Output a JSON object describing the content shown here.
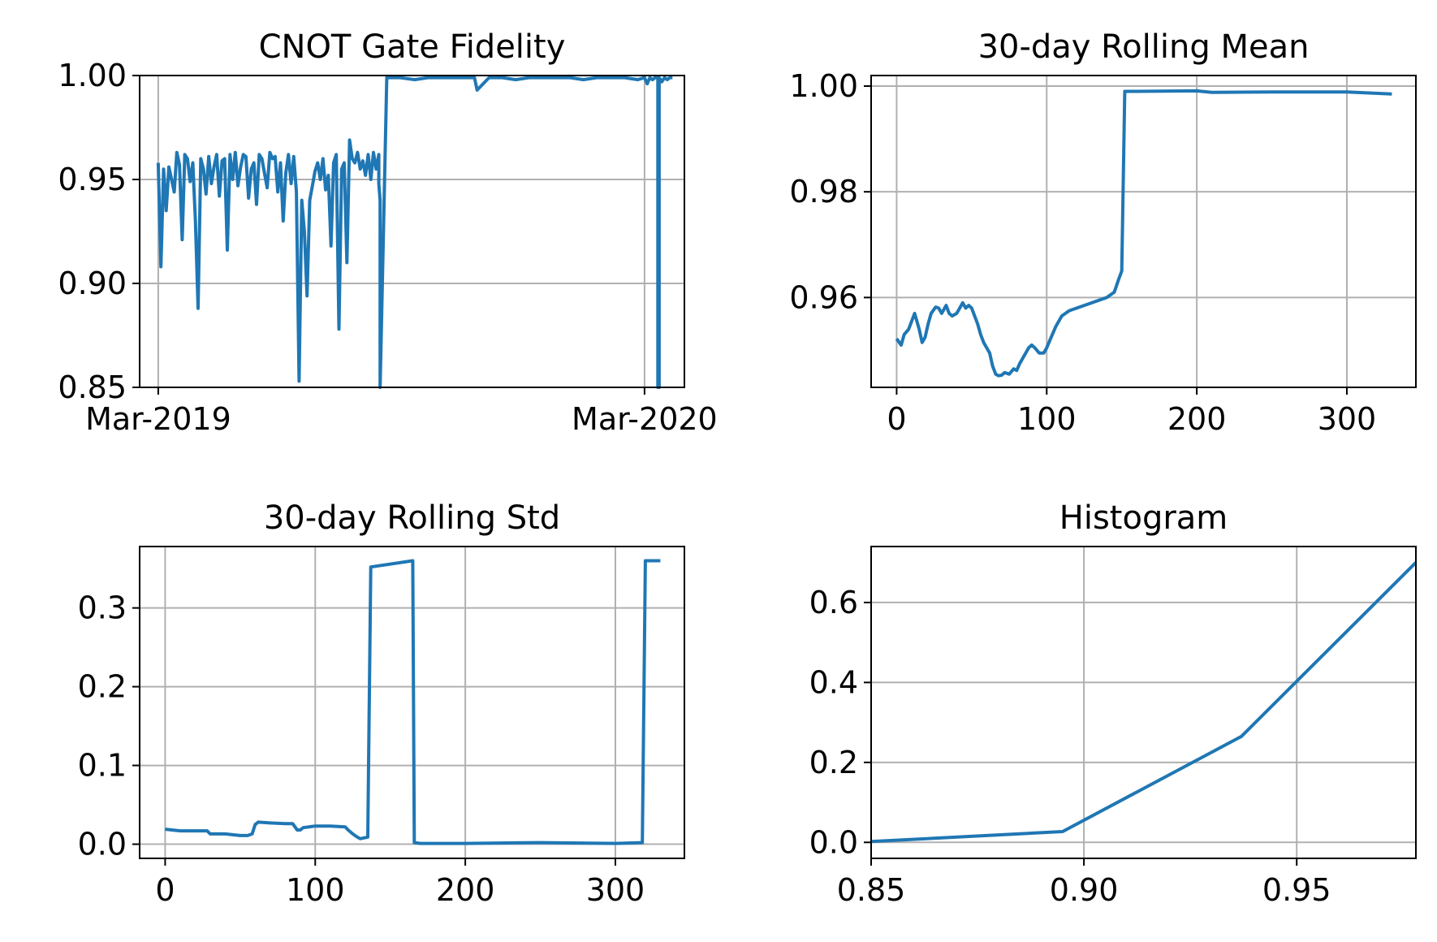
{
  "figure": {
    "colors": {
      "series": "#1f77b4",
      "grid": "#b0b0b0",
      "frame": "#000000"
    }
  },
  "chart_data": [
    {
      "id": "fidelity",
      "type": "line",
      "title": "CNOT Gate Fidelity",
      "xlabel": "",
      "ylabel": "",
      "x_axis": "date",
      "x": [
        "2019-03-01",
        "2019-03-03",
        "2019-03-05",
        "2019-03-07",
        "2019-03-09",
        "2019-03-11",
        "2019-03-13",
        "2019-03-15",
        "2019-03-17",
        "2019-03-19",
        "2019-03-21",
        "2019-03-23",
        "2019-03-25",
        "2019-03-27",
        "2019-03-29",
        "2019-03-31",
        "2019-04-02",
        "2019-04-04",
        "2019-04-06",
        "2019-04-08",
        "2019-04-10",
        "2019-04-12",
        "2019-04-14",
        "2019-04-16",
        "2019-04-18",
        "2019-04-20",
        "2019-04-22",
        "2019-04-24",
        "2019-04-26",
        "2019-04-28",
        "2019-04-30",
        "2019-05-02",
        "2019-05-04",
        "2019-05-06",
        "2019-05-08",
        "2019-05-10",
        "2019-05-12",
        "2019-05-14",
        "2019-05-16",
        "2019-05-18",
        "2019-05-20",
        "2019-05-22",
        "2019-05-24",
        "2019-05-26",
        "2019-05-28",
        "2019-05-30",
        "2019-06-01",
        "2019-06-03",
        "2019-06-05",
        "2019-06-07",
        "2019-06-09",
        "2019-06-11",
        "2019-06-13",
        "2019-06-15",
        "2019-06-17",
        "2019-06-19",
        "2019-06-21",
        "2019-06-23",
        "2019-06-25",
        "2019-06-27",
        "2019-06-29",
        "2019-07-01",
        "2019-07-03",
        "2019-07-05",
        "2019-07-07",
        "2019-07-09",
        "2019-07-11",
        "2019-07-13",
        "2019-07-15",
        "2019-07-17",
        "2019-07-19",
        "2019-07-21",
        "2019-07-23",
        "2019-07-25",
        "2019-07-27",
        "2019-07-29",
        "2019-07-31",
        "2019-08-02",
        "2019-08-04",
        "2019-08-06",
        "2019-08-08",
        "2019-08-10",
        "2019-08-12",
        "2019-08-14",
        "2019-08-14",
        "2019-08-15",
        "2019-08-15",
        "2019-08-20",
        "2019-08-30",
        "2019-09-10",
        "2019-09-20",
        "2019-10-01",
        "2019-10-10",
        "2019-10-20",
        "2019-10-25",
        "2019-10-27",
        "2019-11-05",
        "2019-11-15",
        "2019-11-25",
        "2019-12-05",
        "2019-12-15",
        "2019-12-25",
        "2020-01-05",
        "2020-01-15",
        "2020-01-25",
        "2020-02-05",
        "2020-02-15",
        "2020-02-25",
        "2020-03-01",
        "2020-03-03",
        "2020-03-05",
        "2020-03-07",
        "2020-03-09",
        "2020-03-11",
        "2020-03-11",
        "2020-03-12",
        "2020-03-12",
        "2020-03-14",
        "2020-03-16",
        "2020-03-18",
        "2020-03-20",
        "2020-03-22"
      ],
      "y": [
        0.958,
        0.908,
        0.955,
        0.935,
        0.956,
        0.95,
        0.944,
        0.963,
        0.957,
        0.921,
        0.962,
        0.96,
        0.949,
        0.958,
        0.93,
        0.888,
        0.96,
        0.955,
        0.943,
        0.961,
        0.948,
        0.956,
        0.962,
        0.942,
        0.959,
        0.96,
        0.916,
        0.962,
        0.95,
        0.963,
        0.947,
        0.956,
        0.962,
        0.961,
        0.941,
        0.955,
        0.958,
        0.938,
        0.962,
        0.96,
        0.953,
        0.946,
        0.963,
        0.96,
        0.961,
        0.944,
        0.958,
        0.93,
        0.953,
        0.962,
        0.948,
        0.961,
        0.944,
        0.853,
        0.94,
        0.925,
        0.894,
        0.94,
        0.947,
        0.954,
        0.958,
        0.95,
        0.96,
        0.945,
        0.952,
        0.918,
        0.958,
        0.962,
        0.878,
        0.955,
        0.958,
        0.91,
        0.969,
        0.96,
        0.958,
        0.963,
        0.955,
        0.959,
        0.952,
        0.962,
        0.95,
        0.963,
        0.955,
        0.962,
        0.948,
        0.94,
        0.85,
        0.999,
        0.999,
        0.998,
        0.999,
        0.999,
        0.999,
        0.999,
        0.999,
        0.993,
        0.999,
        0.999,
        0.998,
        0.999,
        0.999,
        0.999,
        0.999,
        0.998,
        0.999,
        0.999,
        0.999,
        0.998,
        0.999,
        0.996,
        0.999,
        0.998,
        0.999,
        0.999,
        0.85,
        0.85,
        0.999,
        0.997,
        0.999,
        0.998,
        0.999,
        0.999
      ],
      "ylim": [
        0.85,
        1.0
      ],
      "xlim": [
        "2019-02-15",
        "2020-03-31"
      ],
      "yticks": [
        "0.85",
        "0.90",
        "0.95",
        "1.00"
      ],
      "ytick_values": [
        0.85,
        0.9,
        0.95,
        1.0
      ],
      "xticks": [
        "Mar-2019",
        "Mar-2020"
      ],
      "xtick_values": [
        "2019-03-01",
        "2020-03-01"
      ],
      "grid": true
    },
    {
      "id": "rolling-mean",
      "type": "line",
      "title": "30-day Rolling Mean",
      "xlabel": "",
      "ylabel": "",
      "x": [
        0,
        3,
        5,
        8,
        10,
        12,
        15,
        17,
        19,
        21,
        23,
        26,
        28,
        30,
        33,
        35,
        37,
        40,
        42,
        44,
        46,
        48,
        50,
        52,
        54,
        56,
        58,
        60,
        62,
        64,
        66,
        68,
        70,
        72,
        75,
        78,
        80,
        82,
        84,
        86,
        88,
        90,
        92,
        95,
        98,
        100,
        103,
        106,
        110,
        115,
        120,
        125,
        130,
        135,
        140,
        145,
        148,
        150,
        152,
        155,
        160,
        200,
        210,
        250,
        300,
        330
      ],
      "y": [
        0.9522,
        0.951,
        0.953,
        0.954,
        0.9555,
        0.957,
        0.954,
        0.9515,
        0.9525,
        0.955,
        0.957,
        0.9582,
        0.958,
        0.957,
        0.9585,
        0.957,
        0.9565,
        0.957,
        0.958,
        0.959,
        0.958,
        0.9585,
        0.958,
        0.9565,
        0.955,
        0.953,
        0.9515,
        0.9505,
        0.9495,
        0.947,
        0.9455,
        0.9452,
        0.9453,
        0.9458,
        0.9455,
        0.9465,
        0.9462,
        0.9475,
        0.9485,
        0.9495,
        0.9505,
        0.951,
        0.9505,
        0.9495,
        0.9495,
        0.9505,
        0.9525,
        0.9545,
        0.9565,
        0.9575,
        0.958,
        0.9585,
        0.959,
        0.9595,
        0.96,
        0.961,
        0.9635,
        0.965,
        0.999,
        0.999,
        0.999,
        0.9991,
        0.9988,
        0.9989,
        0.9989,
        0.9985
      ],
      "ylim": [
        0.943,
        1.002
      ],
      "xlim": [
        -17,
        346
      ],
      "yticks": [
        "0.96",
        "0.98",
        "1.00"
      ],
      "ytick_values": [
        0.96,
        0.98,
        1.0
      ],
      "xticks": [
        "0",
        "100",
        "200",
        "300"
      ],
      "xtick_values": [
        0,
        100,
        200,
        300
      ],
      "grid": true
    },
    {
      "id": "rolling-std",
      "type": "line",
      "title": "30-day Rolling Std",
      "xlabel": "",
      "ylabel": "",
      "x": [
        0,
        10,
        20,
        28,
        30,
        40,
        50,
        55,
        58,
        60,
        62,
        70,
        80,
        85,
        88,
        90,
        92,
        100,
        110,
        120,
        122,
        125,
        128,
        130,
        135,
        137,
        165,
        166,
        170,
        200,
        250,
        300,
        318,
        320,
        330
      ],
      "y": [
        0.019,
        0.017,
        0.017,
        0.017,
        0.013,
        0.013,
        0.011,
        0.011,
        0.013,
        0.025,
        0.028,
        0.027,
        0.026,
        0.026,
        0.018,
        0.018,
        0.021,
        0.023,
        0.023,
        0.022,
        0.018,
        0.013,
        0.009,
        0.007,
        0.009,
        0.352,
        0.36,
        0.002,
        0.001,
        0.001,
        0.002,
        0.001,
        0.002,
        0.36,
        0.36
      ],
      "ylim": [
        -0.018,
        0.378
      ],
      "xlim": [
        -17,
        346
      ],
      "yticks": [
        "0.0",
        "0.1",
        "0.2",
        "0.3"
      ],
      "ytick_values": [
        0.0,
        0.1,
        0.2,
        0.3
      ],
      "xticks": [
        "0",
        "100",
        "200",
        "300"
      ],
      "xtick_values": [
        0,
        100,
        200,
        300
      ],
      "grid": true
    },
    {
      "id": "histogram",
      "type": "line",
      "title": "Histogram",
      "xlabel": "",
      "ylabel": "",
      "x": [
        0.85,
        0.895,
        0.937,
        0.978
      ],
      "y": [
        0.002,
        0.027,
        0.265,
        0.7
      ],
      "ylim": [
        -0.04,
        0.74
      ],
      "xlim": [
        0.85,
        0.978
      ],
      "yticks": [
        "0.0",
        "0.2",
        "0.4",
        "0.6"
      ],
      "ytick_values": [
        0.0,
        0.2,
        0.4,
        0.6
      ],
      "xticks": [
        "0.85",
        "0.90",
        "0.95"
      ],
      "xtick_values": [
        0.85,
        0.9,
        0.95
      ],
      "grid": true
    }
  ]
}
